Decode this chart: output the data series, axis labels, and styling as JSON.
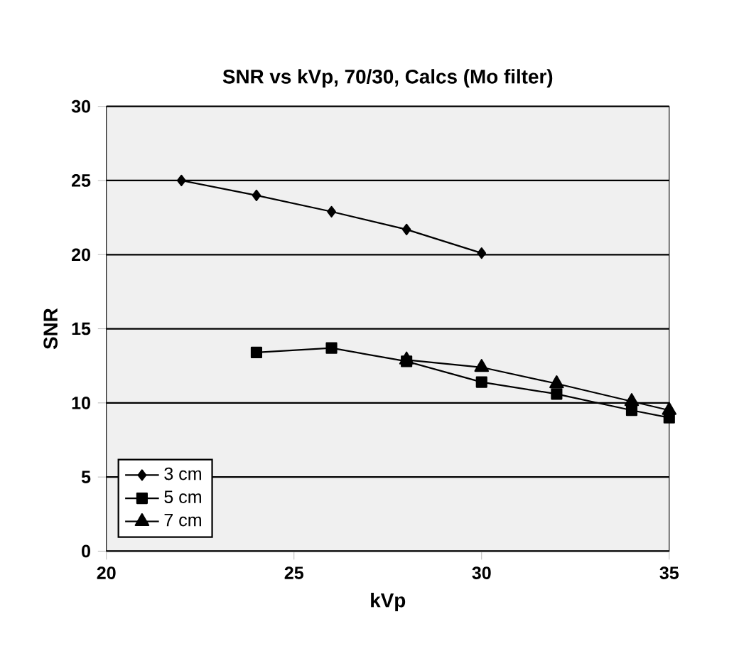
{
  "chart_data": {
    "type": "line",
    "title": "SNR vs kVp, 70/30, Calcs (Mo filter)",
    "xlabel": "kVp",
    "ylabel": "SNR",
    "xlim": [
      20,
      35
    ],
    "xticks": [
      20,
      25,
      30,
      35
    ],
    "ylim": [
      0,
      30
    ],
    "yticks": [
      0,
      5,
      10,
      15,
      20,
      25,
      30
    ],
    "grid": "y",
    "legend": "bottom left",
    "series": [
      {
        "name": "3 cm",
        "color": "#000000",
        "marker": "diamond",
        "x": [
          22,
          24,
          26,
          28,
          30
        ],
        "values": [
          25,
          24,
          22.9,
          21.7,
          20.1
        ]
      },
      {
        "name": "5 cm",
        "color": "#000000",
        "marker": "square",
        "x": [
          24,
          26,
          28,
          30,
          32,
          34,
          35
        ],
        "values": [
          13.4,
          13.7,
          12.8,
          11.4,
          10.6,
          9.5,
          9.0
        ]
      },
      {
        "name": "7 cm",
        "color": "#000000",
        "marker": "triangle",
        "x": [
          28,
          30,
          32,
          34,
          35
        ],
        "values": [
          12.9,
          12.4,
          11.3,
          10.1,
          9.5
        ]
      }
    ]
  }
}
